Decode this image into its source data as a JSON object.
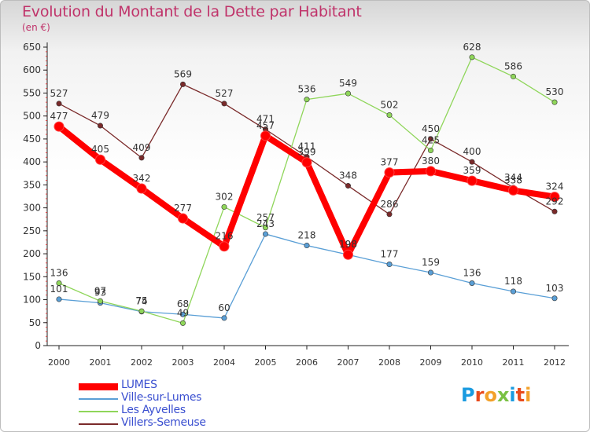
{
  "title": "Evolution du Montant de la Dette par Habitant",
  "subtitle": "(en €)",
  "logo": {
    "text": "Proxiti",
    "colors": [
      "#1a9be0",
      "#e84a1c",
      "#f3a12a",
      "#7ac143",
      "#1a9be0",
      "#e84a1c",
      "#f3a12a"
    ]
  },
  "chart_data": {
    "type": "line",
    "x": [
      "2000",
      "2001",
      "2002",
      "2003",
      "2004",
      "2005",
      "2006",
      "2007",
      "2008",
      "2009",
      "2010",
      "2011",
      "2012"
    ],
    "ylim": [
      0,
      650
    ],
    "yticks": [
      0,
      50,
      100,
      150,
      200,
      250,
      300,
      350,
      400,
      450,
      500,
      550,
      600,
      650
    ],
    "grid": false,
    "legend_placement": "bottom-left",
    "series": [
      {
        "name": "LUMES",
        "color": "#ff0000",
        "values": [
          477,
          405,
          342,
          277,
          216,
          457,
          399,
          198,
          377,
          380,
          359,
          338,
          324
        ],
        "labels": [
          "477",
          "405",
          "342",
          "277",
          "216",
          "457",
          "399",
          "198",
          "377",
          "380",
          "359",
          "338",
          "324"
        ]
      },
      {
        "name": "Ville-sur-Lumes",
        "color": "#5a9fd6",
        "values": [
          101,
          93,
          74,
          68,
          60,
          243,
          218,
          198,
          177,
          159,
          136,
          118,
          103
        ],
        "labels": [
          "101",
          "93",
          "74",
          "68",
          "60",
          "243",
          "218",
          "198",
          "177",
          "159",
          "136",
          "118",
          "103"
        ]
      },
      {
        "name": "Les Ayvelles",
        "color": "#8fd65a",
        "values": [
          136,
          97,
          75,
          49,
          302,
          257,
          536,
          549,
          502,
          425,
          628,
          586,
          530
        ],
        "labels": [
          "136",
          "97",
          "75",
          "49",
          "302",
          "257",
          "536",
          "549",
          "502",
          "425",
          "628",
          "586",
          "530"
        ]
      },
      {
        "name": "Villers-Semeuse",
        "color": "#7a2a2a",
        "values": [
          527,
          479,
          409,
          569,
          527,
          471,
          411,
          348,
          286,
          450,
          400,
          344,
          292
        ],
        "labels": [
          "527",
          "479",
          "409",
          "569",
          "527",
          "471",
          "411",
          "348",
          "286",
          "450",
          "400",
          "344",
          "292"
        ]
      }
    ]
  }
}
